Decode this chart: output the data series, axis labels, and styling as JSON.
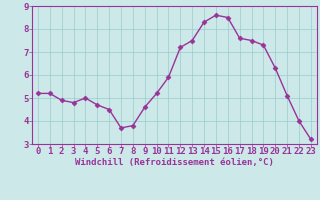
{
  "x": [
    0,
    1,
    2,
    3,
    4,
    5,
    6,
    7,
    8,
    9,
    10,
    11,
    12,
    13,
    14,
    15,
    16,
    17,
    18,
    19,
    20,
    21,
    22,
    23
  ],
  "y": [
    5.2,
    5.2,
    4.9,
    4.8,
    5.0,
    4.7,
    4.5,
    3.7,
    3.8,
    4.6,
    5.2,
    5.9,
    7.2,
    7.5,
    8.3,
    8.6,
    8.5,
    7.6,
    7.5,
    7.3,
    6.3,
    5.1,
    4.0,
    3.2
  ],
  "line_color": "#993399",
  "marker": "D",
  "marker_size": 2.5,
  "bg_color": "#cce8e8",
  "grid_color": "#99cccc",
  "xlabel": "Windchill (Refroidissement éolien,°C)",
  "xlabel_color": "#993399",
  "tick_color": "#993399",
  "spine_color": "#993399",
  "ylim": [
    3,
    9
  ],
  "xlim": [
    -0.5,
    23.5
  ],
  "yticks": [
    3,
    4,
    5,
    6,
    7,
    8,
    9
  ],
  "xticks": [
    0,
    1,
    2,
    3,
    4,
    5,
    6,
    7,
    8,
    9,
    10,
    11,
    12,
    13,
    14,
    15,
    16,
    17,
    18,
    19,
    20,
    21,
    22,
    23
  ],
  "tick_fontsize": 6.5,
  "xlabel_fontsize": 6.5,
  "linewidth": 1.0
}
